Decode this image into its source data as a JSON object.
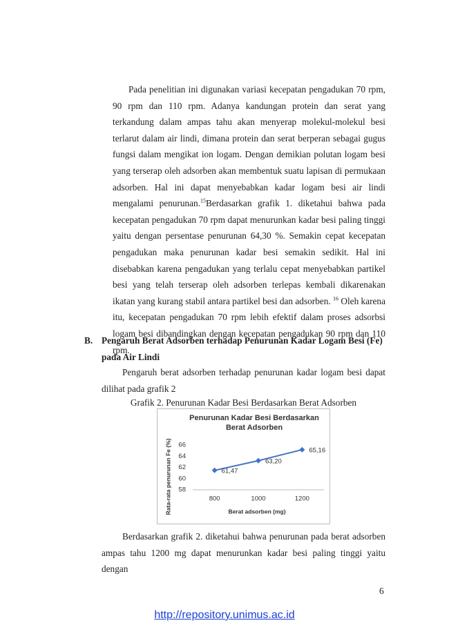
{
  "paragraph_1": [
    "Pada penelitian ini digunakan variasi kecepatan pengadukan 70 rpm, 90 rpm dan 110 rpm. Adanya kandungan protein dan serat yang terkandung dalam ampas tahu akan menyerap molekul-molekul besi terlarut dalam air lindi, dimana protein dan serat berperan sebagai gugus fungsi dalam mengikat ion logam. Dengan demikian polutan logam besi yang terserap oleh adsorben akan membentuk suatu lapisan di permukaan adsorben. Hal ini dapat menyebabkan kadar logam besi air lindi mengalami penurunan.",
    "15",
    "Berdasarkan grafik 1. diketahui bahwa pada kecepatan pengadukan 70 rpm dapat menurunkan kadar besi paling tinggi yaitu dengan persentase penurunan 64,30 %. Semakin cepat kecepatan pengadukan maka penurunan kadar besi semakin sedikit. Hal ini disebabkan karena pengadukan yang terlalu cepat menyebabkan partikel besi yang telah terserap oleh adsorben terlepas kembali dikarenakan ikatan yang kurang stabil antara partikel besi dan adsorben.",
    "16",
    "Oleh karena itu, kecepatan pengadukan 70 rpm lebih efektif dalam proses adsorbsi logam besi dibandingkan dengan kecepatan pengadukan 90 rpm dan 110 rpm."
  ],
  "section": {
    "marker": "B.",
    "heading": "Pengaruh Berat Adsorben terhadap Penurunan Kadar Logam Besi (Fe) pada Air Lindi"
  },
  "paragraph_2": "Pengaruh berat adsorben terhadap penurunan kadar logam besi dapat dilihat pada grafik 2",
  "caption": "Grafik 2. Penurunan Kadar Besi Berdasarkan Berat Adsorben",
  "chart_data": {
    "type": "line",
    "title": "Penurunan Kadar Besi Berdasarkan Berat Adsorben",
    "x_label": "Berat adsorben (mg)",
    "y_label": "Rata-rata penurunan Fe (%)",
    "categories": [
      "800",
      "1000",
      "1200"
    ],
    "series": [
      {
        "color": "#4472c4",
        "values": [
          61.47,
          63.2,
          65.16
        ],
        "value_labels": [
          "61,47",
          "63,20",
          "65,16"
        ]
      }
    ],
    "ylim": [
      58,
      66
    ],
    "yticks": [
      58,
      60,
      62,
      64,
      66
    ]
  },
  "paragraph_3": "Berdasarkan grafik 2. diketahui bahwa penurunan pada berat adsorben ampas tahu 1200 mg dapat menurunkan kadar besi paling tinggi yaitu dengan",
  "page_number": "6",
  "footer_link": "http://repository.unimus.ac.id"
}
